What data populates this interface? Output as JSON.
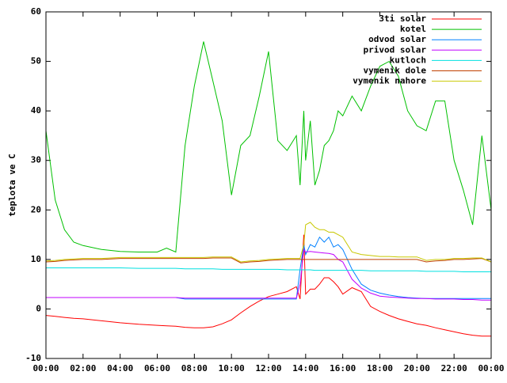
{
  "chart_data": {
    "type": "line",
    "ylabel": "teplota ve C",
    "x": [
      0,
      0.5,
      1,
      1.5,
      2,
      3,
      4,
      5,
      6,
      6.5,
      7,
      7.5,
      8,
      8.5,
      9,
      9.5,
      10,
      10.5,
      11,
      11.5,
      12,
      12.5,
      13,
      13.5,
      13.7,
      13.9,
      14,
      14.25,
      14.5,
      14.75,
      15,
      15.25,
      15.5,
      15.75,
      16,
      16.5,
      17,
      17.5,
      18,
      18.5,
      19,
      19.5,
      20,
      20.5,
      21,
      21.5,
      22,
      22.5,
      23,
      23.5,
      24
    ],
    "xlim": [
      0,
      24
    ],
    "xticks": [
      {
        "value": 0,
        "label": "00:00"
      },
      {
        "value": 2,
        "label": "02:00"
      },
      {
        "value": 4,
        "label": "04:00"
      },
      {
        "value": 6,
        "label": "06:00"
      },
      {
        "value": 8,
        "label": "08:00"
      },
      {
        "value": 10,
        "label": "10:00"
      },
      {
        "value": 12,
        "label": "12:00"
      },
      {
        "value": 14,
        "label": "14:00"
      },
      {
        "value": 16,
        "label": "16:00"
      },
      {
        "value": 18,
        "label": "18:00"
      },
      {
        "value": 20,
        "label": "20:00"
      },
      {
        "value": 22,
        "label": "22:00"
      },
      {
        "value": 24,
        "label": "00:00"
      }
    ],
    "ylim": [
      -10,
      60
    ],
    "yticks": [
      -10,
      0,
      10,
      20,
      30,
      40,
      50,
      60
    ],
    "legend": "upper right",
    "series": [
      {
        "name": "3ti solar",
        "color": "#ff0000",
        "values": [
          -1.3,
          -1.5,
          -1.7,
          -1.9,
          -2,
          -2.4,
          -2.8,
          -3.1,
          -3.3,
          -3.4,
          -3.5,
          -3.7,
          -3.8,
          -3.8,
          -3.6,
          -3,
          -2.2,
          -0.8,
          0.5,
          1.6,
          2.5,
          3,
          3.5,
          4.5,
          2,
          15,
          3,
          4,
          4,
          5,
          6.3,
          6.3,
          5.5,
          4.5,
          3,
          4.3,
          3.5,
          0.5,
          -0.5,
          -1.3,
          -2,
          -2.5,
          -3,
          -3.3,
          -3.8,
          -4.2,
          -4.6,
          -5,
          -5.3,
          -5.5,
          -5.5
        ]
      },
      {
        "name": "kotel",
        "color": "#00c000",
        "values": [
          36,
          22,
          16,
          13.5,
          12.8,
          12,
          11.6,
          11.5,
          11.5,
          12.3,
          11.5,
          33,
          45,
          54,
          46,
          38,
          23,
          33,
          35,
          43,
          52,
          34,
          32,
          35,
          25,
          40,
          30,
          38,
          25,
          28,
          33,
          34,
          36,
          40,
          39,
          43,
          40,
          45,
          49,
          50,
          47,
          40,
          37,
          36,
          42,
          42,
          30,
          24,
          17,
          35,
          20
        ]
      },
      {
        "name": "odvod solar",
        "color": "#0080ff",
        "values": [
          2.3,
          2.3,
          2.3,
          2.3,
          2.3,
          2.3,
          2.3,
          2.3,
          2.3,
          2.3,
          2.3,
          2,
          2,
          2,
          2,
          2,
          2,
          2,
          2,
          2,
          2,
          2,
          2,
          2,
          8,
          13,
          11,
          13,
          12.5,
          14.5,
          13.5,
          14.5,
          12.5,
          13,
          12,
          8,
          5,
          3.8,
          3.2,
          2.8,
          2.5,
          2.3,
          2.2,
          2.1,
          2.1,
          2.1,
          2.1,
          2.1,
          2.1,
          2.1,
          2.1
        ]
      },
      {
        "name": "privod solar",
        "color": "#c000ff",
        "values": [
          2.3,
          2.3,
          2.3,
          2.3,
          2.3,
          2.3,
          2.3,
          2.3,
          2.3,
          2.3,
          2.3,
          2.2,
          2.2,
          2.2,
          2.2,
          2.2,
          2.2,
          2.2,
          2.2,
          2.2,
          2.2,
          2.2,
          2.2,
          2.2,
          5,
          12,
          11.5,
          11.6,
          11.5,
          11.4,
          11.3,
          11.2,
          11,
          10,
          9.5,
          6,
          4.2,
          3.2,
          2.6,
          2.4,
          2.3,
          2.2,
          2.1,
          2.1,
          2,
          2,
          2,
          1.9,
          1.9,
          1.8,
          1.8
        ]
      },
      {
        "name": "kutloch",
        "color": "#00e0e0",
        "values": [
          8.3,
          8.3,
          8.3,
          8.3,
          8.3,
          8.3,
          8.3,
          8.2,
          8.2,
          8.2,
          8.2,
          8.1,
          8.1,
          8.1,
          8.1,
          8,
          8,
          8,
          8,
          8,
          8,
          8,
          7.9,
          7.9,
          7.9,
          7.9,
          7.9,
          7.9,
          7.8,
          7.8,
          7.8,
          7.8,
          7.8,
          7.8,
          7.8,
          7.8,
          7.8,
          7.7,
          7.7,
          7.7,
          7.7,
          7.7,
          7.7,
          7.6,
          7.6,
          7.6,
          7.6,
          7.5,
          7.5,
          7.5,
          7.5
        ]
      },
      {
        "name": "vymenik dole",
        "color": "#c04000",
        "values": [
          9.5,
          9.6,
          9.8,
          9.9,
          10,
          10,
          10.2,
          10.2,
          10.2,
          10.2,
          10.2,
          10.2,
          10.2,
          10.2,
          10.3,
          10.3,
          10.3,
          9.3,
          9.5,
          9.6,
          9.8,
          9.9,
          10,
          10,
          10,
          10,
          10,
          10,
          10,
          10,
          10,
          10,
          10,
          10,
          10,
          10,
          10,
          10,
          10,
          10,
          10,
          10,
          10,
          9.5,
          9.7,
          9.8,
          10,
          10,
          10.1,
          10.2,
          9.5
        ]
      },
      {
        "name": "vymenik nahore",
        "color": "#c8c800",
        "values": [
          9.7,
          9.8,
          10,
          10.1,
          10.2,
          10.2,
          10.4,
          10.4,
          10.4,
          10.4,
          10.4,
          10.4,
          10.4,
          10.4,
          10.5,
          10.5,
          10.5,
          9.5,
          9.7,
          9.8,
          10,
          10.1,
          10.2,
          10.2,
          10.2,
          13,
          17,
          17.5,
          16.5,
          16,
          16,
          15.5,
          15.5,
          15,
          14.5,
          11.5,
          11,
          10.8,
          10.6,
          10.6,
          10.5,
          10.5,
          10.5,
          9.8,
          10,
          10,
          10.2,
          10.2,
          10.3,
          10.3,
          9.5
        ]
      }
    ]
  }
}
